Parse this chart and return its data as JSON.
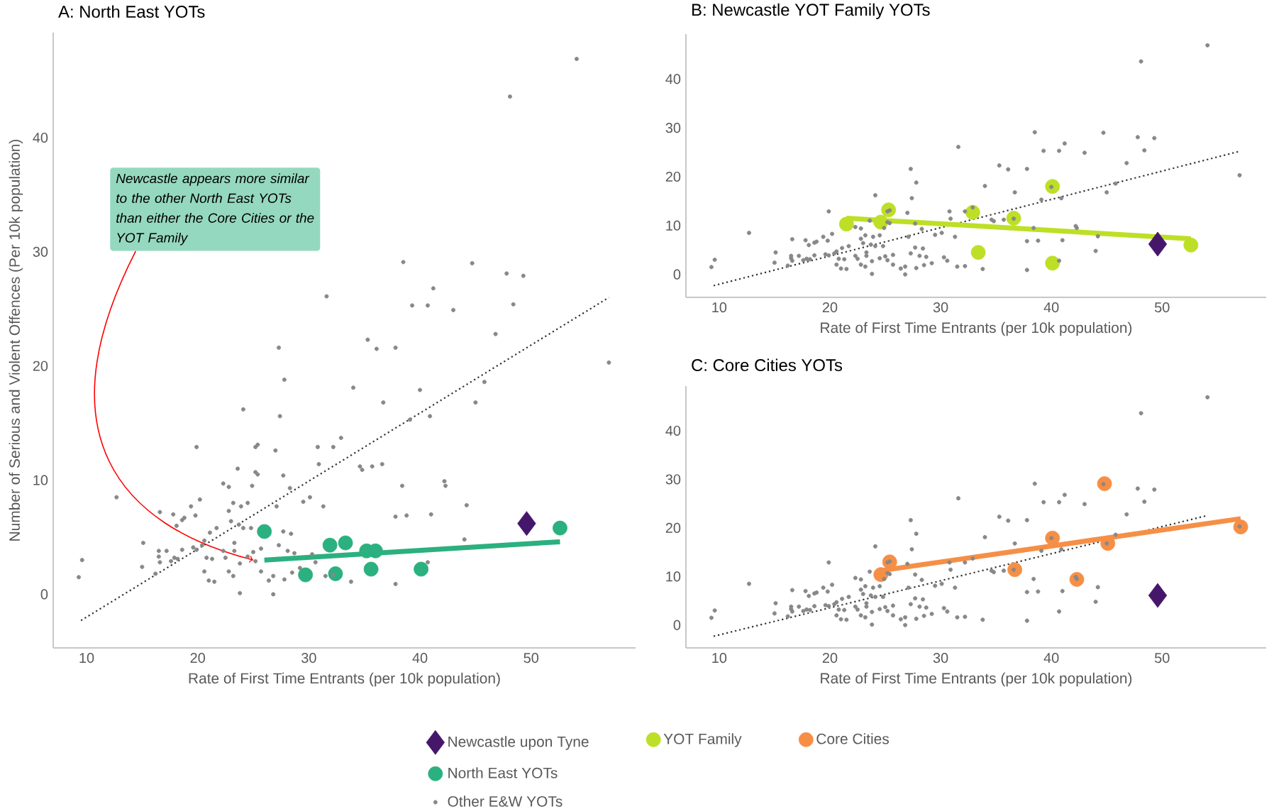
{
  "chart_data": [
    {
      "type": "scatter",
      "title": "A: North East YOTs",
      "xlabel": "Rate of First Time Entrants (per 10k population)",
      "ylabel": "Number of Serious and Violent Offences (Per 10k population)",
      "xlim": [
        7,
        59.4
      ],
      "ylim": [
        -4.7,
        49.2
      ],
      "xticks": [
        10,
        20,
        30,
        40,
        50
      ],
      "yticks": [
        0,
        10,
        20,
        30,
        40
      ],
      "legend": "bottom",
      "annotations": [
        {
          "text": "Newcastle appears more similar to the other North East YOTs than either the Core Cities or the YOT Family",
          "x": 25,
          "y": 3
        }
      ],
      "series": [
        {
          "type": "line",
          "color": "#333333",
          "line_style": "dotted",
          "x": [
            9.5,
            57.0
          ],
          "values": [
            -2.3,
            26.0
          ]
        },
        {
          "type": "line",
          "color": "#2bb07f",
          "line_style": "solid",
          "x": [
            26.0,
            52.6
          ],
          "values": [
            3.0,
            4.6
          ]
        },
        {
          "name": "Newcastle upon Tyne",
          "color": "#45176b",
          "marker": "diamond",
          "x": [
            49.6
          ],
          "values": [
            6.2
          ]
        },
        {
          "name": "North East YOTs",
          "color": "#2bb07f",
          "marker": "circle",
          "x": [
            26.0,
            29.7,
            31.9,
            32.4,
            33.3,
            35.2,
            36.0,
            35.6,
            40.1,
            52.6
          ],
          "values": [
            5.5,
            1.7,
            4.3,
            1.8,
            4.5,
            3.8,
            3.8,
            2.2,
            2.2,
            5.8
          ]
        },
        {
          "name": "Other E&W YOTs",
          "color": "#888888",
          "marker": "circle",
          "x": [
            54.1,
            48.1,
            57.0,
            38.5,
            44.7,
            47.8,
            49.3,
            31.6,
            39.3,
            40.7,
            41.2,
            43.0,
            46.8,
            48.4,
            35.3,
            36.1,
            37.8,
            27.3,
            27.8,
            45.8,
            34.0,
            40.0,
            36.7,
            27.4,
            40.9,
            45.0,
            39.1,
            24.1,
            19.9,
            25.2,
            25.4,
            27.0,
            30.8,
            32.2,
            32.9,
            34.6,
            34.8,
            36.6,
            35.7,
            42.2,
            42.3,
            44.2,
            38.4,
            38.8,
            37.8,
            41.0,
            12.7,
            16.6,
            17.8,
            18.1,
            18.6,
            20.6,
            21.1,
            21.7,
            23.0,
            23.2,
            23.6,
            22.3,
            22.8,
            20.2,
            19.8,
            18.8,
            19.4,
            24.5,
            25.2,
            25.4,
            23.9,
            24.9,
            27.7,
            30.9,
            28.3,
            29.5,
            30.1,
            31.3,
            27.1,
            27.7,
            28.4,
            22.8,
            23.7,
            24.1,
            24.8,
            15.0,
            15.1,
            16.5,
            16.6,
            17.2,
            17.6,
            17.9,
            18.2,
            18.6,
            19.6,
            19.9,
            20.4,
            20.6,
            20.8,
            21.3,
            22.3,
            22.5,
            23.3,
            23.3,
            23.8,
            24.5,
            25.0,
            25.2,
            25.7,
            27.3,
            28.1,
            28.7,
            30.3,
            30.6,
            28.5,
            23.8,
            26.8,
            21.0,
            21.5,
            22.8,
            23.2,
            25.7,
            26.4,
            26.8,
            27.8,
            29.2,
            31.5,
            32.2,
            33.8,
            37.8,
            9.3,
            9.6,
            16.5,
            16.2,
            44.0,
            40.7
          ],
          "values": [
            46.9,
            43.6,
            20.3,
            29.1,
            29.0,
            28.1,
            27.9,
            26.1,
            25.3,
            25.3,
            26.8,
            24.9,
            22.8,
            25.4,
            22.3,
            21.5,
            21.6,
            21.6,
            18.8,
            18.6,
            18.1,
            17.9,
            16.8,
            15.6,
            15.6,
            16.8,
            15.3,
            16.2,
            12.9,
            12.9,
            13.1,
            12.6,
            12.9,
            12.9,
            13.7,
            11.2,
            10.9,
            11.4,
            11.2,
            9.9,
            9.5,
            7.8,
            9.5,
            6.9,
            6.8,
            7.0,
            8.5,
            7.2,
            7.0,
            6.0,
            6.5,
            4.7,
            5.4,
            5.8,
            6.4,
            8.0,
            11.0,
            9.7,
            9.4,
            8.3,
            6.9,
            6.7,
            7.7,
            8.0,
            10.7,
            10.5,
            7.7,
            9.5,
            10.4,
            11.4,
            9.3,
            8.1,
            8.5,
            7.7,
            7.7,
            5.5,
            5.3,
            7.3,
            6.1,
            5.8,
            5.8,
            2.4,
            4.5,
            3.3,
            2.8,
            3.8,
            2.9,
            3.2,
            3.1,
            3.9,
            4.1,
            3.9,
            4.3,
            2.0,
            3.2,
            3.1,
            3.8,
            3.2,
            4.5,
            3.8,
            2.7,
            3.3,
            3.7,
            2.9,
            4.0,
            4.3,
            3.8,
            3.6,
            3.5,
            2.8,
            1.9,
            0.1,
            0.0,
            1.2,
            1.1,
            2.0,
            1.6,
            2.0,
            1.2,
            1.6,
            1.3,
            2.3,
            1.6,
            1.7,
            1.1,
            0.9,
            1.5,
            3.0,
            3.8,
            1.8,
            4.8,
            2.8
          ]
        }
      ]
    },
    {
      "type": "scatter",
      "title": "B: Newcastle YOT Family YOTs",
      "xlabel": "Rate of First Time Entrants (per 10k population)",
      "xlim": [
        7,
        59.4
      ],
      "ylim": [
        -4.7,
        49.2
      ],
      "xticks": [
        10,
        20,
        30,
        40,
        50
      ],
      "yticks": [
        0,
        10,
        20,
        30,
        40
      ],
      "legend": "bottom",
      "series": [
        {
          "type": "line",
          "color": "#333333",
          "line_style": "dotted",
          "x": [
            9.5,
            57.0
          ],
          "values": [
            -2.3,
            25.2
          ]
        },
        {
          "type": "line",
          "color": "#bddf26",
          "line_style": "solid",
          "x": [
            21.5,
            52.6
          ],
          "values": [
            11.5,
            7.3
          ]
        },
        {
          "color": "#45176b",
          "marker": "diamond",
          "x": [
            49.6
          ],
          "values": [
            6.2
          ]
        },
        {
          "name": "YOT Family",
          "color": "#bddf26",
          "marker": "circle",
          "x": [
            21.5,
            24.6,
            25.3,
            32.9,
            33.4,
            36.6,
            40.1,
            40.1,
            52.6
          ],
          "values": [
            10.3,
            10.7,
            13.2,
            12.7,
            4.5,
            11.5,
            18.0,
            2.3,
            6.0
          ]
        },
        {
          "color": "#888888",
          "marker": "circle",
          "x": [
            54.1,
            48.1,
            57.0,
            38.5,
            44.7,
            47.8,
            49.3,
            31.6,
            39.3,
            40.7,
            41.2,
            43.0,
            46.8,
            48.4,
            35.3,
            36.1,
            37.8,
            27.3,
            27.8,
            45.8,
            34.0,
            40.0,
            36.7,
            27.4,
            40.9,
            45.0,
            39.1,
            24.1,
            19.9,
            25.2,
            25.4,
            27.0,
            30.8,
            32.2,
            32.9,
            34.6,
            34.8,
            36.6,
            35.7,
            42.2,
            42.3,
            44.2,
            38.4,
            38.8,
            37.8,
            41.0,
            12.7,
            16.6,
            17.8,
            18.1,
            18.6,
            20.6,
            21.1,
            21.7,
            23.0,
            23.2,
            23.6,
            22.3,
            22.8,
            20.2,
            19.8,
            18.8,
            19.4,
            24.5,
            25.2,
            25.4,
            23.9,
            24.9,
            27.7,
            30.9,
            28.3,
            29.5,
            30.1,
            31.3,
            27.1,
            27.7,
            28.4,
            22.8,
            23.7,
            24.1,
            24.8,
            15.0,
            15.1,
            16.5,
            16.6,
            17.2,
            17.6,
            17.9,
            18.2,
            18.6,
            19.6,
            19.9,
            20.4,
            20.6,
            20.8,
            21.3,
            22.3,
            22.5,
            23.3,
            23.3,
            23.8,
            24.5,
            25.0,
            25.2,
            25.7,
            27.3,
            28.1,
            28.7,
            30.3,
            30.6,
            28.5,
            23.8,
            26.8,
            21.0,
            21.5,
            22.8,
            23.2,
            25.7,
            26.4,
            26.8,
            27.8,
            29.2,
            31.5,
            32.2,
            33.8,
            37.8,
            9.3,
            9.6,
            16.5,
            16.2,
            44.0,
            40.7
          ],
          "values": [
            46.9,
            43.6,
            20.3,
            29.1,
            29.0,
            28.1,
            27.9,
            26.1,
            25.3,
            25.3,
            26.8,
            24.9,
            22.8,
            25.4,
            22.3,
            21.5,
            21.6,
            21.6,
            18.8,
            18.6,
            18.1,
            17.9,
            16.8,
            15.6,
            15.6,
            16.8,
            15.3,
            16.2,
            12.9,
            12.9,
            13.1,
            12.6,
            12.9,
            12.9,
            13.7,
            11.2,
            10.9,
            11.4,
            11.2,
            9.9,
            9.5,
            7.8,
            9.5,
            6.9,
            6.8,
            7.0,
            8.5,
            7.2,
            7.0,
            6.0,
            6.5,
            4.7,
            5.4,
            5.8,
            6.4,
            8.0,
            11.0,
            9.7,
            9.4,
            8.3,
            6.9,
            6.7,
            7.7,
            8.0,
            10.7,
            10.5,
            7.7,
            9.5,
            10.4,
            11.4,
            9.3,
            8.1,
            8.5,
            7.7,
            7.7,
            5.5,
            5.3,
            7.3,
            6.1,
            5.8,
            5.8,
            2.4,
            4.5,
            3.3,
            2.8,
            3.8,
            2.9,
            3.2,
            3.1,
            3.9,
            4.1,
            3.9,
            4.3,
            2.0,
            3.2,
            3.1,
            3.8,
            3.2,
            4.5,
            3.8,
            2.7,
            3.3,
            3.7,
            2.9,
            4.0,
            4.3,
            3.8,
            3.6,
            3.5,
            2.8,
            1.9,
            0.1,
            0.0,
            1.2,
            1.1,
            2.0,
            1.6,
            2.0,
            1.2,
            1.6,
            1.3,
            2.3,
            1.6,
            1.7,
            1.1,
            0.9,
            1.5,
            3.0,
            3.8,
            1.8,
            4.8,
            2.8
          ]
        }
      ]
    },
    {
      "type": "scatter",
      "title": "C: Core Cities YOTs",
      "xlabel": "Rate of First Time Entrants (per 10k population)",
      "xlim": [
        7,
        59.4
      ],
      "ylim": [
        -4.7,
        49.2
      ],
      "xticks": [
        10,
        20,
        30,
        40,
        50
      ],
      "yticks": [
        0,
        10,
        20,
        30,
        40
      ],
      "legend": "bottom",
      "series": [
        {
          "type": "line",
          "color": "#333333",
          "line_style": "dotted",
          "x": [
            9.5,
            54.0
          ],
          "values": [
            -2.3,
            22.5
          ]
        },
        {
          "type": "line",
          "color": "#f68f46",
          "line_style": "solid",
          "x": [
            24.6,
            57.1
          ],
          "values": [
            11.2,
            21.9
          ]
        },
        {
          "color": "#45176b",
          "marker": "diamond",
          "x": [
            49.6
          ],
          "values": [
            6.1
          ]
        },
        {
          "name": "Core Cities",
          "color": "#f68f46",
          "marker": "circle",
          "x": [
            24.6,
            25.4,
            36.7,
            40.1,
            42.3,
            44.8,
            45.1,
            57.1
          ],
          "values": [
            10.4,
            13.0,
            11.4,
            17.9,
            9.4,
            29.1,
            16.8,
            20.2
          ]
        },
        {
          "color": "#888888",
          "marker": "circle",
          "x": [
            54.1,
            48.1,
            57.0,
            38.5,
            44.7,
            47.8,
            49.3,
            31.6,
            39.3,
            40.7,
            41.2,
            43.0,
            46.8,
            48.4,
            35.3,
            36.1,
            37.8,
            27.3,
            27.8,
            45.8,
            34.0,
            40.0,
            36.7,
            27.4,
            40.9,
            45.0,
            39.1,
            24.1,
            19.9,
            25.2,
            25.4,
            27.0,
            30.8,
            32.2,
            32.9,
            34.6,
            34.8,
            36.6,
            35.7,
            42.2,
            42.3,
            44.2,
            38.4,
            38.8,
            37.8,
            41.0,
            12.7,
            16.6,
            17.8,
            18.1,
            18.6,
            20.6,
            21.1,
            21.7,
            23.0,
            23.2,
            23.6,
            22.3,
            22.8,
            20.2,
            19.8,
            18.8,
            19.4,
            24.5,
            25.2,
            25.4,
            23.9,
            24.9,
            27.7,
            30.9,
            28.3,
            29.5,
            30.1,
            31.3,
            27.1,
            27.7,
            28.4,
            22.8,
            23.7,
            24.1,
            24.8,
            15.0,
            15.1,
            16.5,
            16.6,
            17.2,
            17.6,
            17.9,
            18.2,
            18.6,
            19.6,
            19.9,
            20.4,
            20.6,
            20.8,
            21.3,
            22.3,
            22.5,
            23.3,
            23.3,
            23.8,
            24.5,
            25.0,
            25.2,
            25.7,
            27.3,
            28.1,
            28.7,
            30.3,
            30.6,
            28.5,
            23.8,
            26.8,
            21.0,
            21.5,
            22.8,
            23.2,
            25.7,
            26.4,
            26.8,
            27.8,
            29.2,
            31.5,
            32.2,
            33.8,
            37.8,
            9.3,
            9.6,
            16.5,
            16.2,
            44.0,
            40.7
          ],
          "values": [
            46.9,
            43.6,
            20.3,
            29.1,
            29.0,
            28.1,
            27.9,
            26.1,
            25.3,
            25.3,
            26.8,
            24.9,
            22.8,
            25.4,
            22.3,
            21.5,
            21.6,
            21.6,
            18.8,
            18.6,
            18.1,
            17.9,
            16.8,
            15.6,
            15.6,
            16.8,
            15.3,
            16.2,
            12.9,
            12.9,
            13.1,
            12.6,
            12.9,
            12.9,
            13.7,
            11.2,
            10.9,
            11.4,
            11.2,
            9.9,
            9.5,
            7.8,
            9.5,
            6.9,
            6.8,
            7.0,
            8.5,
            7.2,
            7.0,
            6.0,
            6.5,
            4.7,
            5.4,
            5.8,
            6.4,
            8.0,
            11.0,
            9.7,
            9.4,
            8.3,
            6.9,
            6.7,
            7.7,
            8.0,
            10.7,
            10.5,
            7.7,
            9.5,
            10.4,
            11.4,
            9.3,
            8.1,
            8.5,
            7.7,
            7.7,
            5.5,
            5.3,
            7.3,
            6.1,
            5.8,
            5.8,
            2.4,
            4.5,
            3.3,
            2.8,
            3.8,
            2.9,
            3.2,
            3.1,
            3.9,
            4.1,
            3.9,
            4.3,
            2.0,
            3.2,
            3.1,
            3.8,
            3.2,
            4.5,
            3.8,
            2.7,
            3.3,
            3.7,
            2.9,
            4.0,
            4.3,
            3.8,
            3.6,
            3.5,
            2.8,
            1.9,
            0.1,
            0.0,
            1.2,
            1.1,
            2.0,
            1.6,
            2.0,
            1.2,
            1.6,
            1.3,
            2.3,
            1.6,
            1.7,
            1.1,
            0.9,
            1.5,
            3.0,
            3.8,
            1.8,
            4.8,
            2.8
          ]
        }
      ]
    }
  ]
}
